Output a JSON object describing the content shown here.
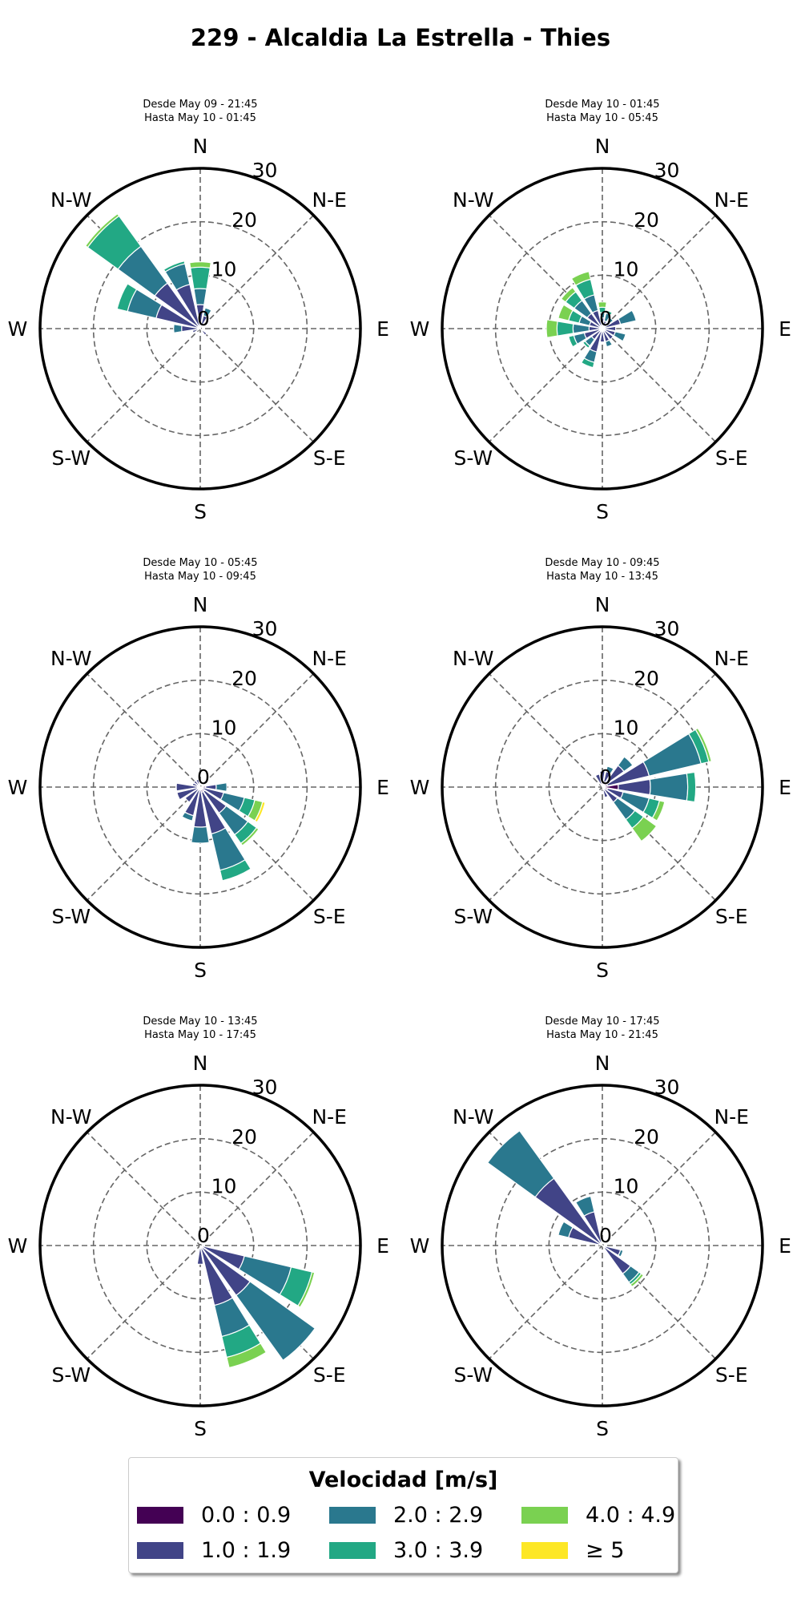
{
  "figure": {
    "title": "229 - Alcaldia La Estrella - Thies"
  },
  "legend": {
    "title": "Velocidad [m/s]",
    "items": [
      {
        "label": "0.0 : 0.9",
        "color": "#440154"
      },
      {
        "label": "1.0 : 1.9",
        "color": "#414487"
      },
      {
        "label": "2.0 : 2.9",
        "color": "#2a788e"
      },
      {
        "label": "3.0 : 3.9",
        "color": "#22a884"
      },
      {
        "label": "4.0 : 4.9",
        "color": "#7ad151"
      },
      {
        "label": "≥ 5",
        "color": "#fde725"
      }
    ]
  },
  "chart_data": [
    {
      "type": "windrose",
      "title": "Desde May 09 - 21:45\nHasta May 10 - 01:45",
      "title_lines": [
        "Desde May 09 - 21:45",
        "Hasta May 10 - 01:45"
      ],
      "direction_labels": [
        "N",
        "N-E",
        "E",
        "S-E",
        "S",
        "S-W",
        "W",
        "N-W"
      ],
      "radial_ticks": [
        0,
        10,
        20,
        30
      ],
      "rmax": 30,
      "speed_bins": [
        "0.0 : 0.9",
        "1.0 : 1.9",
        "2.0 : 2.9",
        "3.0 : 3.9",
        "4.0 : 4.9",
        "≥ 5"
      ],
      "sectors": [
        {
          "dir": 0,
          "counts": [
            0.5,
            4,
            3,
            4,
            1,
            0
          ]
        },
        {
          "dir": 22.5,
          "counts": [
            0.5,
            2,
            1.5,
            0,
            0,
            0
          ]
        },
        {
          "dir": 135,
          "counts": [
            0.5,
            1,
            0,
            0,
            0,
            0
          ]
        },
        {
          "dir": 247.5,
          "counts": [
            0.5,
            1,
            0,
            0,
            0,
            0
          ]
        },
        {
          "dir": 270,
          "counts": [
            0.5,
            3,
            1.5,
            0,
            0,
            0
          ]
        },
        {
          "dir": 292.5,
          "counts": [
            0.5,
            8,
            5.5,
            2,
            0,
            0
          ]
        },
        {
          "dir": 315,
          "counts": [
            0.5,
            10,
            8.5,
            7,
            0.5,
            0
          ]
        },
        {
          "dir": 337.5,
          "counts": [
            0.5,
            8,
            4,
            0.5,
            0,
            0
          ]
        }
      ]
    },
    {
      "type": "windrose",
      "title": "Desde May 10 - 01:45\nHasta May 10 - 05:45",
      "title_lines": [
        "Desde May 10 - 01:45",
        "Hasta May 10 - 05:45"
      ],
      "direction_labels": [
        "N",
        "N-E",
        "E",
        "S-E",
        "S",
        "S-W",
        "W",
        "N-W"
      ],
      "radial_ticks": [
        0,
        10,
        20,
        30
      ],
      "rmax": 30,
      "speed_bins": [
        "0.0 : 0.9",
        "1.0 : 1.9",
        "2.0 : 2.9",
        "3.0 : 3.9",
        "4.0 : 4.9",
        "≥ 5"
      ],
      "sectors": [
        {
          "dir": 0,
          "counts": [
            0.5,
            1.5,
            1,
            1,
            1,
            0
          ]
        },
        {
          "dir": 22.5,
          "counts": [
            0.5,
            1,
            1.5,
            0.5,
            0,
            0
          ]
        },
        {
          "dir": 45,
          "counts": [
            0.5,
            1,
            1,
            0,
            0,
            0
          ]
        },
        {
          "dir": 67.5,
          "counts": [
            0.5,
            3,
            3,
            0,
            0,
            0
          ]
        },
        {
          "dir": 90,
          "counts": [
            0.5,
            2,
            0,
            0,
            0,
            0
          ]
        },
        {
          "dir": 112.5,
          "counts": [
            0.5,
            2,
            2,
            0,
            0,
            0
          ]
        },
        {
          "dir": 135,
          "counts": [
            0.5,
            2,
            0,
            0,
            0,
            0
          ]
        },
        {
          "dir": 157.5,
          "counts": [
            0.5,
            2,
            1,
            0,
            0,
            0
          ]
        },
        {
          "dir": 180,
          "counts": [
            0.5,
            2,
            0,
            0,
            0,
            0
          ]
        },
        {
          "dir": 202.5,
          "counts": [
            0.5,
            4,
            2,
            1,
            0,
            0
          ]
        },
        {
          "dir": 225,
          "counts": [
            0.5,
            2,
            1.5,
            0.5,
            0,
            0
          ]
        },
        {
          "dir": 247.5,
          "counts": [
            0.5,
            3,
            2,
            1,
            0,
            0
          ]
        },
        {
          "dir": 270,
          "counts": [
            0.5,
            2,
            3,
            3,
            2,
            0
          ]
        },
        {
          "dir": 292.5,
          "counts": [
            0.5,
            2,
            2,
            2,
            2,
            0
          ]
        },
        {
          "dir": 315,
          "counts": [
            0.5,
            3,
            3,
            2,
            1,
            0
          ]
        },
        {
          "dir": 337.5,
          "counts": [
            0.5,
            3,
            3,
            3,
            1.5,
            0
          ]
        }
      ]
    },
    {
      "type": "windrose",
      "title": "Desde May 10 - 05:45\nHasta May 10 - 09:45",
      "title_lines": [
        "Desde May 10 - 05:45",
        "Hasta May 10 - 09:45"
      ],
      "direction_labels": [
        "N",
        "N-E",
        "E",
        "S-E",
        "S",
        "S-W",
        "W",
        "N-W"
      ],
      "radial_ticks": [
        0,
        10,
        20,
        30
      ],
      "rmax": 30,
      "speed_bins": [
        "0.0 : 0.9",
        "1.0 : 1.9",
        "2.0 : 2.9",
        "3.0 : 3.9",
        "4.0 : 4.9",
        "≥ 5"
      ],
      "sectors": [
        {
          "dir": 90,
          "counts": [
            1,
            2,
            2,
            0,
            0,
            0
          ]
        },
        {
          "dir": 112.5,
          "counts": [
            0.5,
            4,
            4,
            2,
            1.5,
            0.5
          ]
        },
        {
          "dir": 135,
          "counts": [
            1,
            5,
            5,
            2,
            0.5,
            0
          ]
        },
        {
          "dir": 157.5,
          "counts": [
            1,
            8,
            7,
            2,
            0,
            0
          ]
        },
        {
          "dir": 180,
          "counts": [
            0.5,
            7,
            3,
            0,
            0,
            0
          ]
        },
        {
          "dir": 202.5,
          "counts": [
            0.5,
            5,
            1,
            0,
            0,
            0
          ]
        },
        {
          "dir": 225,
          "counts": [
            0.5,
            3,
            0,
            0,
            0,
            0
          ]
        },
        {
          "dir": 247.5,
          "counts": [
            0.5,
            4,
            0,
            0,
            0,
            0
          ]
        },
        {
          "dir": 270,
          "counts": [
            0.5,
            4,
            0,
            0,
            0,
            0
          ]
        },
        {
          "dir": 292.5,
          "counts": [
            0.5,
            1,
            0,
            0,
            0,
            0
          ]
        },
        {
          "dir": 315,
          "counts": [
            0.5,
            1,
            0,
            0,
            0,
            0
          ]
        },
        {
          "dir": 337.5,
          "counts": [
            0.5,
            1,
            0,
            0,
            0,
            0
          ]
        }
      ]
    },
    {
      "type": "windrose",
      "title": "Desde May 10 - 09:45\nHasta May 10 - 13:45",
      "title_lines": [
        "Desde May 10 - 09:45",
        "Hasta May 10 - 13:45"
      ],
      "direction_labels": [
        "N",
        "N-E",
        "E",
        "S-E",
        "S",
        "S-W",
        "W",
        "N-W"
      ],
      "radial_ticks": [
        0,
        10,
        20,
        30
      ],
      "rmax": 30,
      "speed_bins": [
        "0.0 : 0.9",
        "1.0 : 1.9",
        "2.0 : 2.9",
        "3.0 : 3.9",
        "4.0 : 4.9",
        "≥ 5"
      ],
      "sectors": [
        {
          "dir": 0,
          "counts": [
            1,
            2,
            0,
            0,
            0,
            0
          ]
        },
        {
          "dir": 22.5,
          "counts": [
            1,
            2,
            1,
            0,
            0,
            0
          ]
        },
        {
          "dir": 45,
          "counts": [
            1,
            4,
            2,
            0,
            0,
            0
          ]
        },
        {
          "dir": 67.5,
          "counts": [
            1,
            8,
            10,
            1.5,
            0.5,
            0
          ]
        },
        {
          "dir": 90,
          "counts": [
            3,
            6,
            7,
            1.5,
            0,
            0
          ]
        },
        {
          "dir": 112.5,
          "counts": [
            1,
            3,
            5,
            2,
            1,
            0
          ]
        },
        {
          "dir": 135,
          "counts": [
            0.5,
            3,
            4,
            2,
            3,
            0
          ]
        },
        {
          "dir": 157.5,
          "counts": [
            0.5,
            1.5,
            0,
            0,
            0,
            0
          ]
        },
        {
          "dir": 337.5,
          "counts": [
            0.5,
            2,
            0,
            0,
            0,
            0
          ]
        }
      ]
    },
    {
      "type": "windrose",
      "title": "Desde May 10 - 13:45\nHasta May 10 - 17:45",
      "title_lines": [
        "Desde May 10 - 13:45",
        "Hasta May 10 - 17:45"
      ],
      "direction_labels": [
        "N",
        "N-E",
        "E",
        "S-E",
        "S",
        "S-W",
        "W",
        "N-W"
      ],
      "radial_ticks": [
        0,
        10,
        20,
        30
      ],
      "rmax": 30,
      "speed_bins": [
        "0.0 : 0.9",
        "1.0 : 1.9",
        "2.0 : 2.9",
        "3.0 : 3.9",
        "4.0 : 4.9",
        "≥ 5"
      ],
      "sectors": [
        {
          "dir": 112.5,
          "counts": [
            0.5,
            8,
            9,
            4,
            0.5,
            0
          ]
        },
        {
          "dir": 135,
          "counts": [
            0.5,
            11,
            15,
            0,
            0,
            0
          ]
        },
        {
          "dir": 157.5,
          "counts": [
            0.5,
            11,
            6,
            4,
            2,
            0
          ]
        },
        {
          "dir": 180,
          "counts": [
            0.5,
            3,
            0,
            0,
            0,
            0
          ]
        }
      ]
    },
    {
      "type": "windrose",
      "title": "Desde May 10 - 17:45\nHasta May 10 - 21:45",
      "title_lines": [
        "Desde May 10 - 17:45",
        "Hasta May 10 - 21:45"
      ],
      "direction_labels": [
        "N",
        "N-E",
        "E",
        "S-E",
        "S",
        "S-W",
        "W",
        "N-W"
      ],
      "radial_ticks": [
        0,
        10,
        20,
        30
      ],
      "rmax": 30,
      "speed_bins": [
        "0.0 : 0.9",
        "1.0 : 1.9",
        "2.0 : 2.9",
        "3.0 : 3.9",
        "4.0 : 4.9",
        "≥ 5"
      ],
      "sectors": [
        {
          "dir": 112.5,
          "counts": [
            0.5,
            3,
            0.5,
            0,
            0,
            0
          ]
        },
        {
          "dir": 135,
          "counts": [
            0.5,
            6,
            2,
            0.5,
            0.5,
            0
          ]
        },
        {
          "dir": 292.5,
          "counts": [
            0.5,
            6,
            2,
            0,
            0,
            0
          ]
        },
        {
          "dir": 315,
          "counts": [
            0.5,
            15,
            11,
            0,
            0,
            0
          ]
        },
        {
          "dir": 337.5,
          "counts": [
            0.5,
            6,
            3,
            0,
            0,
            0
          ]
        }
      ]
    }
  ]
}
